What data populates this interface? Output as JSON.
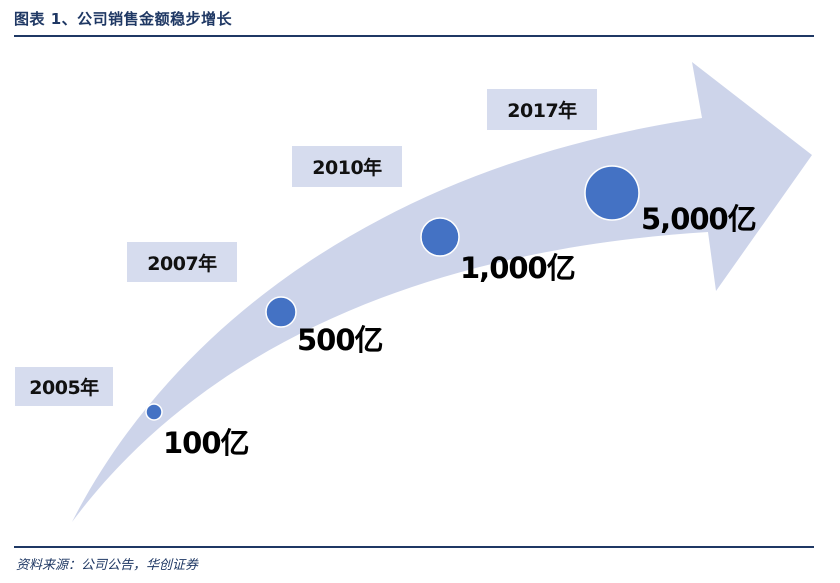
{
  "header": {
    "title": "图表 1、公司销售金额稳步增长"
  },
  "footer": {
    "source": "资料来源：公司公告，华创证券"
  },
  "colors": {
    "arrow_fill": "#cdd4ea",
    "year_box_fill": "#d6dcee",
    "circle_fill": "#4472c4",
    "rule_color": "#1f3864"
  },
  "milestones": [
    {
      "year": "2005年",
      "value": "100亿"
    },
    {
      "year": "2007年",
      "value": "500亿"
    },
    {
      "year": "2010年",
      "value": "1,000亿"
    },
    {
      "year": "2017年",
      "value": "5,000亿"
    }
  ]
}
